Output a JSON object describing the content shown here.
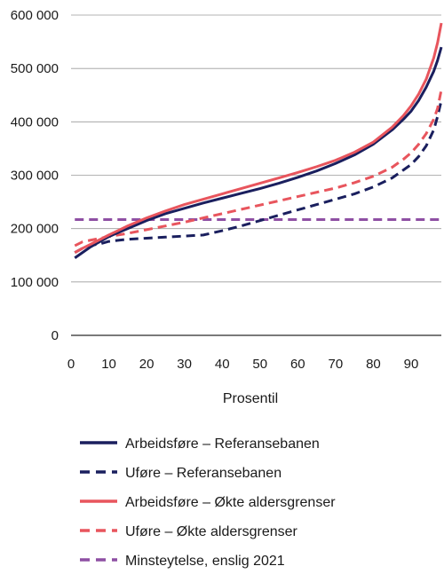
{
  "chart_data": {
    "type": "line",
    "xlabel": "Prosentil",
    "ylabel": "",
    "xlim": [
      0,
      98
    ],
    "ylim": [
      0,
      600000
    ],
    "x_ticks": [
      0,
      10,
      20,
      30,
      40,
      50,
      60,
      70,
      80,
      90
    ],
    "x_tick_labels": [
      "0",
      "10",
      "20",
      "30",
      "40",
      "50",
      "60",
      "70",
      "80",
      "90"
    ],
    "y_ticks": [
      0,
      100000,
      200000,
      300000,
      400000,
      500000,
      600000
    ],
    "y_tick_labels": [
      "0",
      "100 000",
      "200 000",
      "300 000",
      "400 000",
      "500 000",
      "600 000"
    ],
    "grid": "horizontal",
    "legend_position": "bottom",
    "series": [
      {
        "name": "Arbeidsføre – Referansebanen",
        "color": "#1a1f5e",
        "dash": "solid",
        "x": [
          1,
          3,
          5,
          10,
          15,
          20,
          25,
          30,
          35,
          40,
          45,
          50,
          55,
          60,
          65,
          70,
          75,
          80,
          85,
          88,
          90,
          92,
          94,
          96,
          97,
          98
        ],
        "y": [
          145000,
          155000,
          165000,
          185000,
          200000,
          215000,
          228000,
          238000,
          248000,
          257000,
          266000,
          275000,
          285000,
          296000,
          308000,
          322000,
          338000,
          358000,
          385000,
          405000,
          420000,
          440000,
          465000,
          495000,
          515000,
          540000
        ]
      },
      {
        "name": "Uføre – Referansebanen",
        "color": "#1a1f5e",
        "dash": "dashed",
        "x": [
          1,
          3,
          5,
          8,
          10,
          15,
          20,
          25,
          30,
          35,
          40,
          45,
          50,
          55,
          60,
          65,
          70,
          75,
          80,
          85,
          88,
          90,
          92,
          94,
          96,
          97,
          98
        ],
        "y": [
          155000,
          163000,
          168000,
          172000,
          176000,
          180000,
          182000,
          184000,
          186000,
          188000,
          196000,
          205000,
          215000,
          225000,
          235000,
          245000,
          255000,
          265000,
          278000,
          295000,
          310000,
          320000,
          335000,
          355000,
          385000,
          410000,
          440000
        ]
      },
      {
        "name": "Arbeidsføre – Økte aldersgrenser",
        "color": "#e8555d",
        "dash": "solid",
        "x": [
          1,
          3,
          5,
          10,
          15,
          20,
          25,
          30,
          35,
          40,
          45,
          50,
          55,
          60,
          65,
          70,
          75,
          80,
          85,
          88,
          90,
          92,
          94,
          96,
          97,
          98
        ],
        "y": [
          155000,
          163000,
          170000,
          188000,
          205000,
          220000,
          233000,
          245000,
          255000,
          265000,
          275000,
          285000,
          295000,
          305000,
          316000,
          328000,
          343000,
          362000,
          390000,
          412000,
          430000,
          452000,
          480000,
          520000,
          548000,
          585000
        ]
      },
      {
        "name": "Uføre – Økte aldersgrenser",
        "color": "#e8555d",
        "dash": "dashed",
        "x": [
          1,
          3,
          5,
          10,
          15,
          20,
          25,
          30,
          35,
          40,
          45,
          50,
          55,
          60,
          65,
          70,
          75,
          80,
          85,
          88,
          90,
          92,
          94,
          96,
          97,
          98
        ],
        "y": [
          168000,
          175000,
          178000,
          185000,
          191000,
          198000,
          205000,
          212000,
          220000,
          228000,
          236000,
          244000,
          252000,
          260000,
          268000,
          276000,
          286000,
          298000,
          315000,
          330000,
          342000,
          358000,
          378000,
          405000,
          425000,
          460000
        ]
      },
      {
        "name": "Minsteytelse, enslig 2021",
        "color": "#8e4fa3",
        "dash": "dashed",
        "x": [
          1,
          98
        ],
        "y": [
          217000,
          217000
        ]
      }
    ]
  }
}
